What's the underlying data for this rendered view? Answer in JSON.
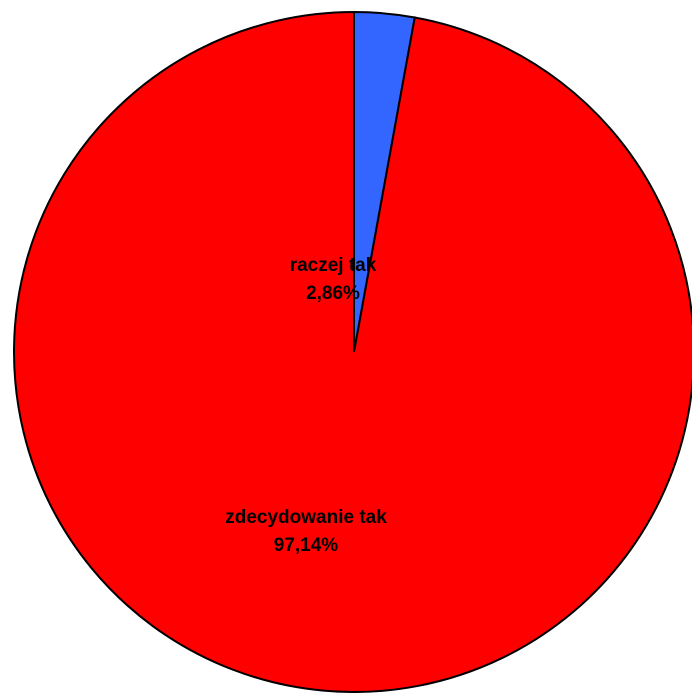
{
  "chart_data": {
    "type": "pie",
    "categories": [
      "raczej tak",
      "zdecydowanie tak"
    ],
    "values": [
      2.86,
      97.14
    ],
    "value_labels": [
      "2,86%",
      "97,14%"
    ],
    "colors": [
      "#3366ff",
      "#ff0000"
    ]
  }
}
